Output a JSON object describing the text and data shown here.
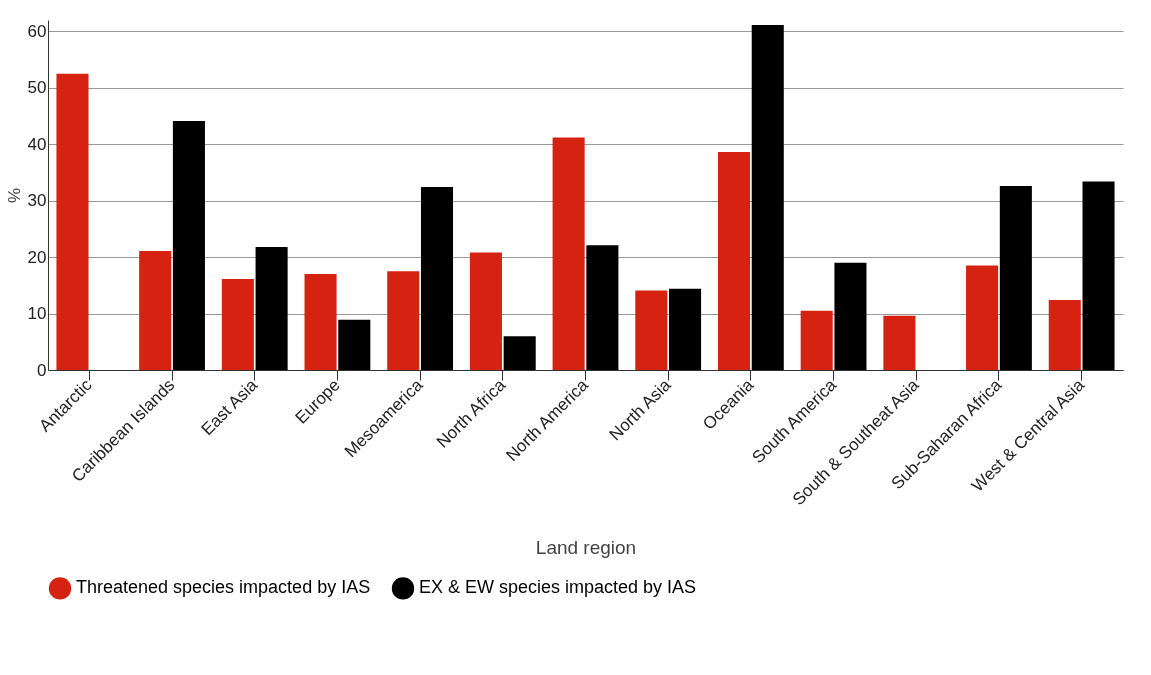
{
  "chart_data": {
    "type": "bar",
    "xlabel": "Land region",
    "ylabel": "%",
    "categories": [
      "Antarctic",
      "Caribbean Islands",
      "East Asia",
      "Europe",
      "Mesoamerica",
      "North Africa",
      "North America",
      "North Asia",
      "Oceania",
      "South America",
      "South & Southeat Asia",
      "Sub-Saharan Africa",
      "West & Central Asia"
    ],
    "series": [
      {
        "name": "Threatened species impacted by IAS",
        "color": "#d62311",
        "values": [
          52.5,
          21.1,
          16.1,
          17.0,
          17.5,
          20.8,
          41.2,
          14.1,
          38.6,
          10.5,
          9.6,
          18.5,
          12.4
        ]
      },
      {
        "name": "EX & EW species impacted by IAS",
        "color": "#000000",
        "values": [
          null,
          44.1,
          21.8,
          8.9,
          32.4,
          6.0,
          22.1,
          14.4,
          61.1,
          19.0,
          null,
          32.6,
          33.4
        ]
      }
    ],
    "ylim": [
      0,
      62
    ],
    "yticks": [
      0,
      10,
      20,
      30,
      40,
      50,
      60
    ],
    "grid": "y",
    "legend": "bottom"
  }
}
